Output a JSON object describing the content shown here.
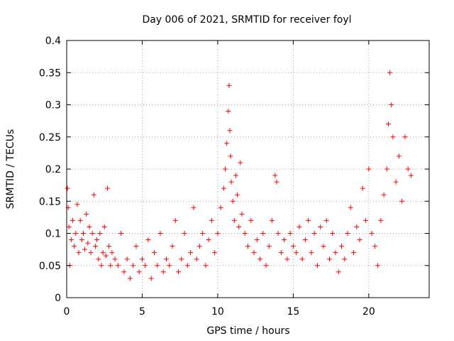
{
  "chart_data": {
    "type": "scatter",
    "title": "Day 006 of 2021, SRMTID for receiver foyl",
    "xlabel": "GPS time / hours",
    "ylabel": "SRMTID / TECUs",
    "xlim": [
      0,
      24
    ],
    "ylim": [
      0,
      0.4
    ],
    "xticks": [
      0,
      5,
      10,
      15,
      20
    ],
    "xtick_labels": [
      "0",
      "5",
      "10",
      "15",
      "20"
    ],
    "yticks": [
      0,
      0.05,
      0.1,
      0.15,
      0.2,
      0.25,
      0.3,
      0.35,
      0.4
    ],
    "ytick_labels": [
      "0",
      "0.05",
      "0.1",
      "0.15",
      "0.2",
      "0.25",
      "0.3",
      "0.35",
      "0.4"
    ],
    "grid": true,
    "marker": "+",
    "color": "#ff0000",
    "series": [
      {
        "name": "SRMTID",
        "x": [
          0.05,
          0.1,
          0.15,
          0.2,
          0.3,
          0.4,
          0.5,
          0.6,
          0.7,
          0.8,
          0.9,
          1.0,
          1.1,
          1.2,
          1.3,
          1.4,
          1.5,
          1.6,
          1.7,
          1.8,
          1.9,
          2.0,
          2.1,
          2.2,
          2.3,
          2.4,
          2.5,
          2.6,
          2.7,
          2.8,
          2.9,
          3.0,
          3.2,
          3.4,
          3.6,
          3.8,
          4.0,
          4.2,
          4.4,
          4.6,
          4.8,
          5.0,
          5.2,
          5.4,
          5.6,
          5.8,
          6.0,
          6.2,
          6.4,
          6.6,
          6.8,
          7.0,
          7.2,
          7.4,
          7.6,
          7.8,
          8.0,
          8.2,
          8.4,
          8.6,
          8.8,
          9.0,
          9.2,
          9.4,
          9.6,
          9.8,
          10.0,
          10.2,
          10.4,
          10.5,
          10.6,
          10.7,
          10.75,
          10.8,
          10.85,
          10.9,
          11.0,
          11.1,
          11.2,
          11.3,
          11.4,
          11.5,
          11.6,
          11.8,
          12.0,
          12.2,
          12.4,
          12.6,
          12.8,
          13.0,
          13.2,
          13.4,
          13.6,
          13.8,
          13.9,
          14.0,
          14.2,
          14.4,
          14.6,
          14.8,
          15.0,
          15.2,
          15.4,
          15.6,
          15.8,
          16.0,
          16.2,
          16.4,
          16.6,
          16.8,
          17.0,
          17.2,
          17.4,
          17.6,
          17.8,
          18.0,
          18.2,
          18.4,
          18.6,
          18.8,
          19.0,
          19.2,
          19.4,
          19.6,
          19.8,
          20.0,
          20.2,
          20.4,
          20.6,
          20.8,
          21.0,
          21.2,
          21.3,
          21.4,
          21.5,
          21.6,
          21.8,
          22.0,
          22.2,
          22.4,
          22.6,
          22.8
        ],
        "y": [
          0.17,
          0.14,
          0.11,
          0.05,
          0.09,
          0.12,
          0.08,
          0.1,
          0.145,
          0.07,
          0.12,
          0.09,
          0.1,
          0.075,
          0.13,
          0.085,
          0.11,
          0.07,
          0.1,
          0.16,
          0.08,
          0.09,
          0.06,
          0.1,
          0.05,
          0.07,
          0.11,
          0.065,
          0.17,
          0.08,
          0.05,
          0.07,
          0.06,
          0.05,
          0.1,
          0.04,
          0.06,
          0.03,
          0.05,
          0.08,
          0.04,
          0.06,
          0.05,
          0.09,
          0.03,
          0.07,
          0.05,
          0.1,
          0.04,
          0.06,
          0.05,
          0.08,
          0.12,
          0.04,
          0.06,
          0.1,
          0.05,
          0.07,
          0.14,
          0.06,
          0.08,
          0.1,
          0.05,
          0.09,
          0.12,
          0.07,
          0.1,
          0.14,
          0.17,
          0.2,
          0.24,
          0.29,
          0.33,
          0.26,
          0.22,
          0.18,
          0.15,
          0.12,
          0.19,
          0.16,
          0.11,
          0.21,
          0.13,
          0.1,
          0.08,
          0.12,
          0.07,
          0.09,
          0.06,
          0.1,
          0.05,
          0.08,
          0.12,
          0.19,
          0.18,
          0.1,
          0.07,
          0.09,
          0.06,
          0.1,
          0.08,
          0.07,
          0.11,
          0.06,
          0.09,
          0.12,
          0.07,
          0.1,
          0.05,
          0.11,
          0.08,
          0.12,
          0.06,
          0.1,
          0.07,
          0.04,
          0.08,
          0.06,
          0.1,
          0.14,
          0.07,
          0.11,
          0.09,
          0.17,
          0.12,
          0.2,
          0.1,
          0.08,
          0.05,
          0.12,
          0.16,
          0.2,
          0.27,
          0.35,
          0.3,
          0.25,
          0.18,
          0.22,
          0.15,
          0.25,
          0.2,
          0.19
        ]
      }
    ]
  }
}
